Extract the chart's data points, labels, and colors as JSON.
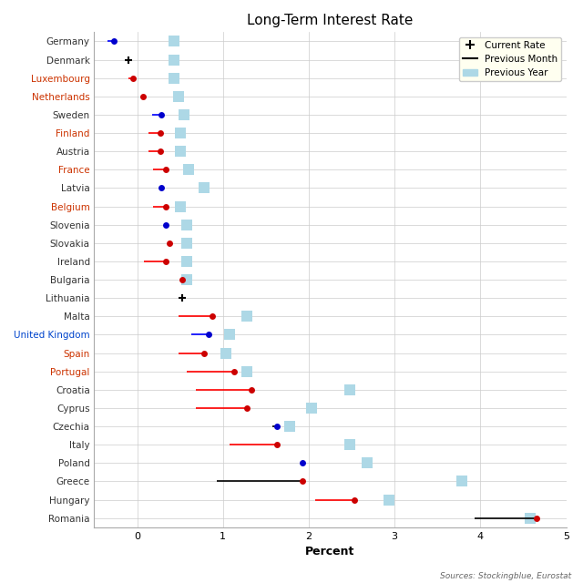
{
  "title": "Long-Term Interest Rate",
  "xlabel": "Percent",
  "source": "Sources: Stockingblue, Eurostat",
  "countries": [
    "Germany",
    "Denmark",
    "Luxembourg",
    "Netherlands",
    "Sweden",
    "Finland",
    "Austria",
    "France",
    "Latvia",
    "Belgium",
    "Slovenia",
    "Slovakia",
    "Ireland",
    "Bulgaria",
    "Lithuania",
    "Malta",
    "United Kingdom",
    "Spain",
    "Portugal",
    "Croatia",
    "Cyprus",
    "Czechia",
    "Italy",
    "Poland",
    "Greece",
    "Hungary",
    "Romania"
  ],
  "current_rate": [
    -0.27,
    -0.1,
    -0.05,
    0.07,
    0.28,
    0.27,
    0.27,
    0.33,
    0.28,
    0.33,
    0.33,
    0.38,
    0.33,
    0.52,
    0.52,
    0.88,
    0.83,
    0.78,
    1.13,
    1.33,
    1.28,
    1.63,
    1.63,
    1.93,
    1.93,
    2.53,
    4.65
  ],
  "prev_month_start": [
    -0.35,
    -0.1,
    -0.1,
    0.07,
    0.17,
    0.13,
    0.13,
    0.18,
    0.28,
    0.18,
    0.33,
    0.38,
    0.08,
    0.52,
    0.52,
    0.48,
    0.63,
    0.48,
    0.58,
    0.68,
    0.68,
    1.58,
    1.08,
    1.93,
    0.93,
    2.08,
    3.93
  ],
  "prev_year": [
    0.43,
    0.43,
    0.43,
    0.48,
    0.55,
    0.5,
    0.5,
    0.6,
    0.78,
    0.5,
    0.58,
    0.58,
    0.58,
    0.58,
    null,
    1.28,
    1.08,
    1.03,
    1.28,
    2.48,
    2.03,
    1.78,
    2.48,
    2.68,
    3.78,
    2.93,
    4.58
  ],
  "dot_color": [
    "blue",
    "black",
    "red",
    "red",
    "blue",
    "red",
    "red",
    "red",
    "blue",
    "red",
    "blue",
    "red",
    "red",
    "red",
    "black",
    "red",
    "blue",
    "red",
    "red",
    "red",
    "red",
    "blue",
    "red",
    "blue",
    "red",
    "red",
    "red"
  ],
  "line_color": [
    "blue",
    "black",
    "red",
    "red",
    "blue",
    "red",
    "red",
    "red",
    "blue",
    "red",
    "blue",
    "red",
    "red",
    "red",
    "black",
    "red",
    "blue",
    "red",
    "red",
    "red",
    "red",
    "black",
    "red",
    "blue",
    "black",
    "red",
    "black"
  ],
  "label_color": [
    "#333333",
    "#333333",
    "#cc3300",
    "#cc3300",
    "#333333",
    "#cc3300",
    "#333333",
    "#cc3300",
    "#333333",
    "#cc3300",
    "#333333",
    "#333333",
    "#333333",
    "#333333",
    "#333333",
    "#333333",
    "#0044cc",
    "#cc3300",
    "#cc3300",
    "#333333",
    "#333333",
    "#333333",
    "#333333",
    "#333333",
    "#333333",
    "#333333",
    "#333333"
  ],
  "xlim": [
    -0.5,
    5.0
  ],
  "xticks": [
    0,
    1,
    2,
    3,
    4,
    5
  ],
  "bg_color": "#ffffff",
  "axes_bg_color": "#ffffff",
  "grid_color": "#cccccc",
  "prev_year_color": "#add8e6",
  "prev_year_size": 80,
  "legend_bg": "#fffff0"
}
